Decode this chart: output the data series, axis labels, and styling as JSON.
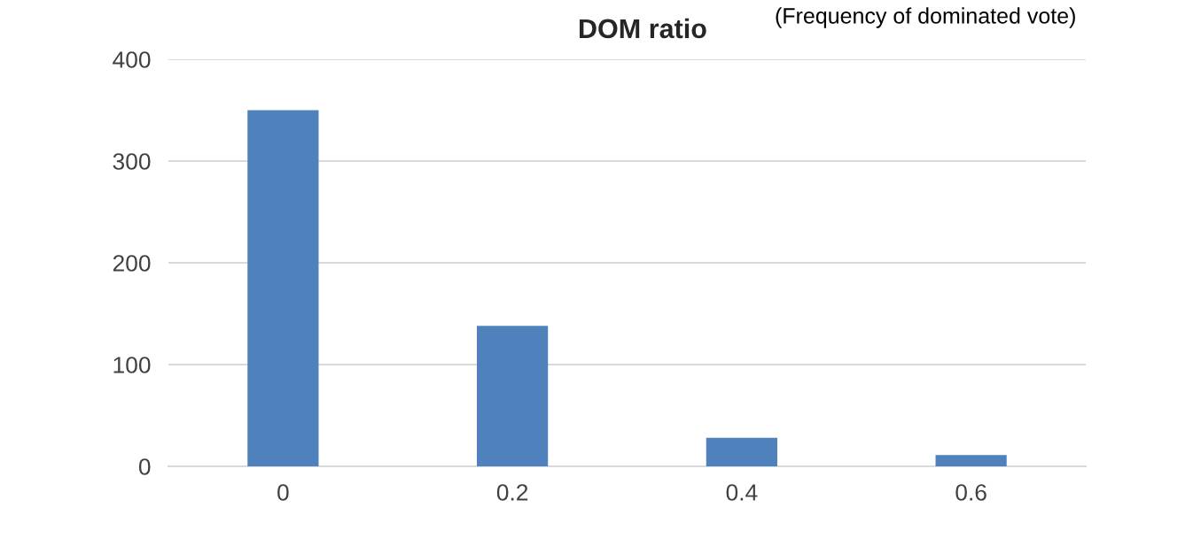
{
  "chart_data": {
    "type": "bar",
    "title": "DOM ratio",
    "subtitle": "(Frequency of dominated vote)",
    "categories": [
      "0",
      "0.2",
      "0.4",
      "0.6"
    ],
    "values": [
      350,
      138,
      28,
      11
    ],
    "color": "#4f81bd",
    "ylim": [
      0,
      400
    ],
    "yticks": [
      0,
      100,
      200,
      300,
      400
    ],
    "grid": "y"
  }
}
